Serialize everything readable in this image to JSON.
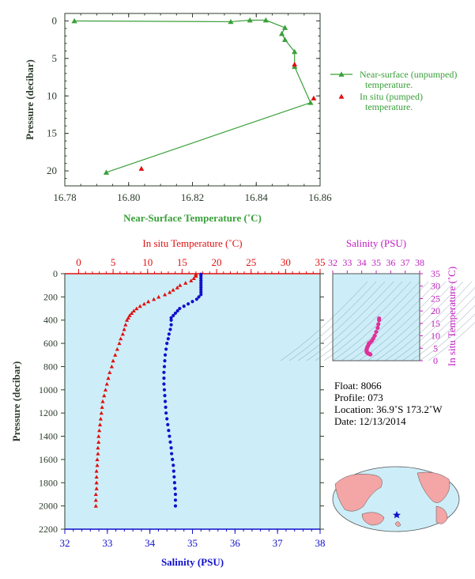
{
  "chart_data": [
    {
      "type": "line",
      "id": "near-surface",
      "xlabel": "Near-Surface Temperature (˚C)",
      "ylabel": "Pressure (decibar)",
      "xlim": [
        16.78,
        16.86
      ],
      "ylim": [
        22,
        -1
      ],
      "xticks": [
        16.78,
        16.8,
        16.82,
        16.84,
        16.86
      ],
      "xtick_labels": [
        "16.78",
        "16.80",
        "16.82",
        "16.84",
        "16.86"
      ],
      "yticks": [
        0,
        5,
        10,
        15,
        20
      ],
      "ytick_labels": [
        "0",
        "5",
        "10",
        "15",
        "20"
      ],
      "legend_placement": "right",
      "series": [
        {
          "name": "Near-surface (unpumped) temperature.",
          "color": "#3aa03a",
          "marker": "triangle",
          "points": [
            [
              16.783,
              0.0
            ],
            [
              16.832,
              0.1
            ],
            [
              16.838,
              -0.1
            ],
            [
              16.843,
              -0.1
            ],
            [
              16.849,
              0.9
            ],
            [
              16.848,
              1.7
            ],
            [
              16.849,
              2.5
            ],
            [
              16.852,
              4.1
            ],
            [
              16.852,
              6.1
            ],
            [
              16.857,
              10.9
            ],
            [
              16.793,
              20.2
            ]
          ]
        },
        {
          "name": "In situ (pumped) temperature.",
          "color": "#e01010",
          "marker": "triangle",
          "points": [
            [
              16.852,
              5.8
            ],
            [
              16.858,
              10.3
            ],
            [
              16.804,
              19.7
            ]
          ]
        }
      ]
    },
    {
      "type": "scatter",
      "id": "profile",
      "top_axis_label": "In situ Temperature (˚C)",
      "bottom_axis_label": "Salinity (PSU)",
      "ylabel": "Pressure (decibar)",
      "temp_lim": [
        -2,
        35
      ],
      "temp_ticks": [
        0,
        5,
        10,
        15,
        20,
        25,
        30,
        35
      ],
      "temp_tick_labels": [
        "0",
        "5",
        "10",
        "15",
        "20",
        "25",
        "30",
        "35"
      ],
      "sal_lim": [
        32,
        38
      ],
      "sal_ticks": [
        32,
        33,
        34,
        35,
        36,
        37,
        38
      ],
      "sal_tick_labels": [
        "32",
        "33",
        "34",
        "35",
        "36",
        "37",
        "38"
      ],
      "ylim": [
        0,
        2200
      ],
      "yticks": [
        0,
        200,
        400,
        600,
        800,
        1000,
        1200,
        1400,
        1600,
        1800,
        2000,
        2200
      ],
      "ytick_labels": [
        "0",
        "200",
        "400",
        "600",
        "800",
        "1000",
        "1200",
        "1400",
        "1600",
        "1800",
        "2000",
        "2200"
      ],
      "temperature_profile": [
        [
          17.0,
          5
        ],
        [
          17.0,
          20
        ],
        [
          16.7,
          40
        ],
        [
          16.3,
          60
        ],
        [
          15.5,
          80
        ],
        [
          14.7,
          100
        ],
        [
          14.3,
          120
        ],
        [
          13.7,
          140
        ],
        [
          13.2,
          160
        ],
        [
          12.5,
          180
        ],
        [
          11.6,
          200
        ],
        [
          10.9,
          220
        ],
        [
          10.1,
          240
        ],
        [
          9.5,
          260
        ],
        [
          8.9,
          280
        ],
        [
          8.4,
          300
        ],
        [
          8.0,
          320
        ],
        [
          7.7,
          340
        ],
        [
          7.4,
          360
        ],
        [
          7.2,
          380
        ],
        [
          7.0,
          400
        ],
        [
          6.8,
          440
        ],
        [
          6.6,
          480
        ],
        [
          6.4,
          520
        ],
        [
          6.1,
          560
        ],
        [
          5.9,
          600
        ],
        [
          5.6,
          650
        ],
        [
          5.3,
          700
        ],
        [
          5.0,
          750
        ],
        [
          4.8,
          800
        ],
        [
          4.5,
          850
        ],
        [
          4.3,
          900
        ],
        [
          4.1,
          950
        ],
        [
          3.9,
          1000
        ],
        [
          3.7,
          1050
        ],
        [
          3.5,
          1100
        ],
        [
          3.4,
          1150
        ],
        [
          3.3,
          1200
        ],
        [
          3.2,
          1250
        ],
        [
          3.1,
          1300
        ],
        [
          3.0,
          1350
        ],
        [
          2.9,
          1400
        ],
        [
          2.9,
          1450
        ],
        [
          2.8,
          1500
        ],
        [
          2.8,
          1550
        ],
        [
          2.7,
          1600
        ],
        [
          2.7,
          1650
        ],
        [
          2.6,
          1700
        ],
        [
          2.6,
          1750
        ],
        [
          2.6,
          1800
        ],
        [
          2.6,
          1850
        ],
        [
          2.5,
          1900
        ],
        [
          2.5,
          1950
        ],
        [
          2.5,
          2000
        ]
      ],
      "salinity_profile": [
        [
          35.2,
          5
        ],
        [
          35.2,
          20
        ],
        [
          35.2,
          40
        ],
        [
          35.2,
          60
        ],
        [
          35.2,
          80
        ],
        [
          35.2,
          100
        ],
        [
          35.2,
          120
        ],
        [
          35.2,
          140
        ],
        [
          35.2,
          160
        ],
        [
          35.2,
          180
        ],
        [
          35.15,
          200
        ],
        [
          35.1,
          220
        ],
        [
          35.0,
          240
        ],
        [
          34.9,
          260
        ],
        [
          34.8,
          280
        ],
        [
          34.7,
          300
        ],
        [
          34.65,
          320
        ],
        [
          34.6,
          340
        ],
        [
          34.55,
          360
        ],
        [
          34.5,
          380
        ],
        [
          34.5,
          400
        ],
        [
          34.5,
          440
        ],
        [
          34.48,
          480
        ],
        [
          34.45,
          520
        ],
        [
          34.43,
          560
        ],
        [
          34.4,
          600
        ],
        [
          34.38,
          650
        ],
        [
          34.36,
          700
        ],
        [
          34.35,
          750
        ],
        [
          34.34,
          800
        ],
        [
          34.33,
          850
        ],
        [
          34.33,
          900
        ],
        [
          34.33,
          950
        ],
        [
          34.34,
          1000
        ],
        [
          34.35,
          1050
        ],
        [
          34.36,
          1100
        ],
        [
          34.37,
          1150
        ],
        [
          34.38,
          1200
        ],
        [
          34.4,
          1250
        ],
        [
          34.42,
          1300
        ],
        [
          34.44,
          1350
        ],
        [
          34.46,
          1400
        ],
        [
          34.48,
          1450
        ],
        [
          34.5,
          1500
        ],
        [
          34.51,
          1550
        ],
        [
          34.53,
          1600
        ],
        [
          34.55,
          1650
        ],
        [
          34.56,
          1700
        ],
        [
          34.57,
          1750
        ],
        [
          34.58,
          1800
        ],
        [
          34.59,
          1850
        ],
        [
          34.6,
          1900
        ],
        [
          34.6,
          1950
        ],
        [
          34.6,
          2000
        ]
      ],
      "temp_color": "#e01010",
      "sal_color": "#1010cc"
    },
    {
      "type": "scatter",
      "id": "ts-diagram",
      "top_axis_label": "Salinity (PSU)",
      "right_axis_label": "In situ Temperature (˚C)",
      "xlim": [
        32,
        38
      ],
      "xticks": [
        32,
        33,
        34,
        35,
        36,
        37,
        38
      ],
      "xtick_labels": [
        "32",
        "33",
        "34",
        "35",
        "36",
        "37",
        "38"
      ],
      "ylim": [
        0,
        35
      ],
      "yticks": [
        0,
        5,
        10,
        15,
        20,
        25,
        30,
        35
      ],
      "ytick_labels": [
        "0",
        "5",
        "10",
        "15",
        "20",
        "25",
        "30",
        "35"
      ],
      "color": "#e0309a",
      "points": [
        [
          35.2,
          17.0
        ],
        [
          35.2,
          16.3
        ],
        [
          35.15,
          14.7
        ],
        [
          35.1,
          13.2
        ],
        [
          35.0,
          11.6
        ],
        [
          34.9,
          10.1
        ],
        [
          34.8,
          8.9
        ],
        [
          34.7,
          8.0
        ],
        [
          34.6,
          7.4
        ],
        [
          34.5,
          7.0
        ],
        [
          34.48,
          6.6
        ],
        [
          34.45,
          6.1
        ],
        [
          34.4,
          5.6
        ],
        [
          34.36,
          5.0
        ],
        [
          34.34,
          4.5
        ],
        [
          34.33,
          4.1
        ],
        [
          34.34,
          3.7
        ],
        [
          34.36,
          3.4
        ],
        [
          34.38,
          3.2
        ],
        [
          34.42,
          3.0
        ],
        [
          34.46,
          2.9
        ],
        [
          34.5,
          2.8
        ],
        [
          34.53,
          2.7
        ],
        [
          34.56,
          2.6
        ],
        [
          34.58,
          2.6
        ],
        [
          34.6,
          2.5
        ]
      ]
    }
  ],
  "float_info": {
    "float": "Float:  8066",
    "profile": "Profile:  073",
    "location": "Location:  36.9˚S  173.2˚W",
    "date": "Date:  12/13/2014"
  },
  "colors": {
    "panel_bg": "#cdeef8",
    "green": "#3aa03a",
    "temp_red": "#e01010",
    "sal_blue": "#1010cc",
    "magenta": "#c020c0",
    "land": "#f4a5a5",
    "ocean": "#cdeef8",
    "float_marker": "#1010cc"
  }
}
